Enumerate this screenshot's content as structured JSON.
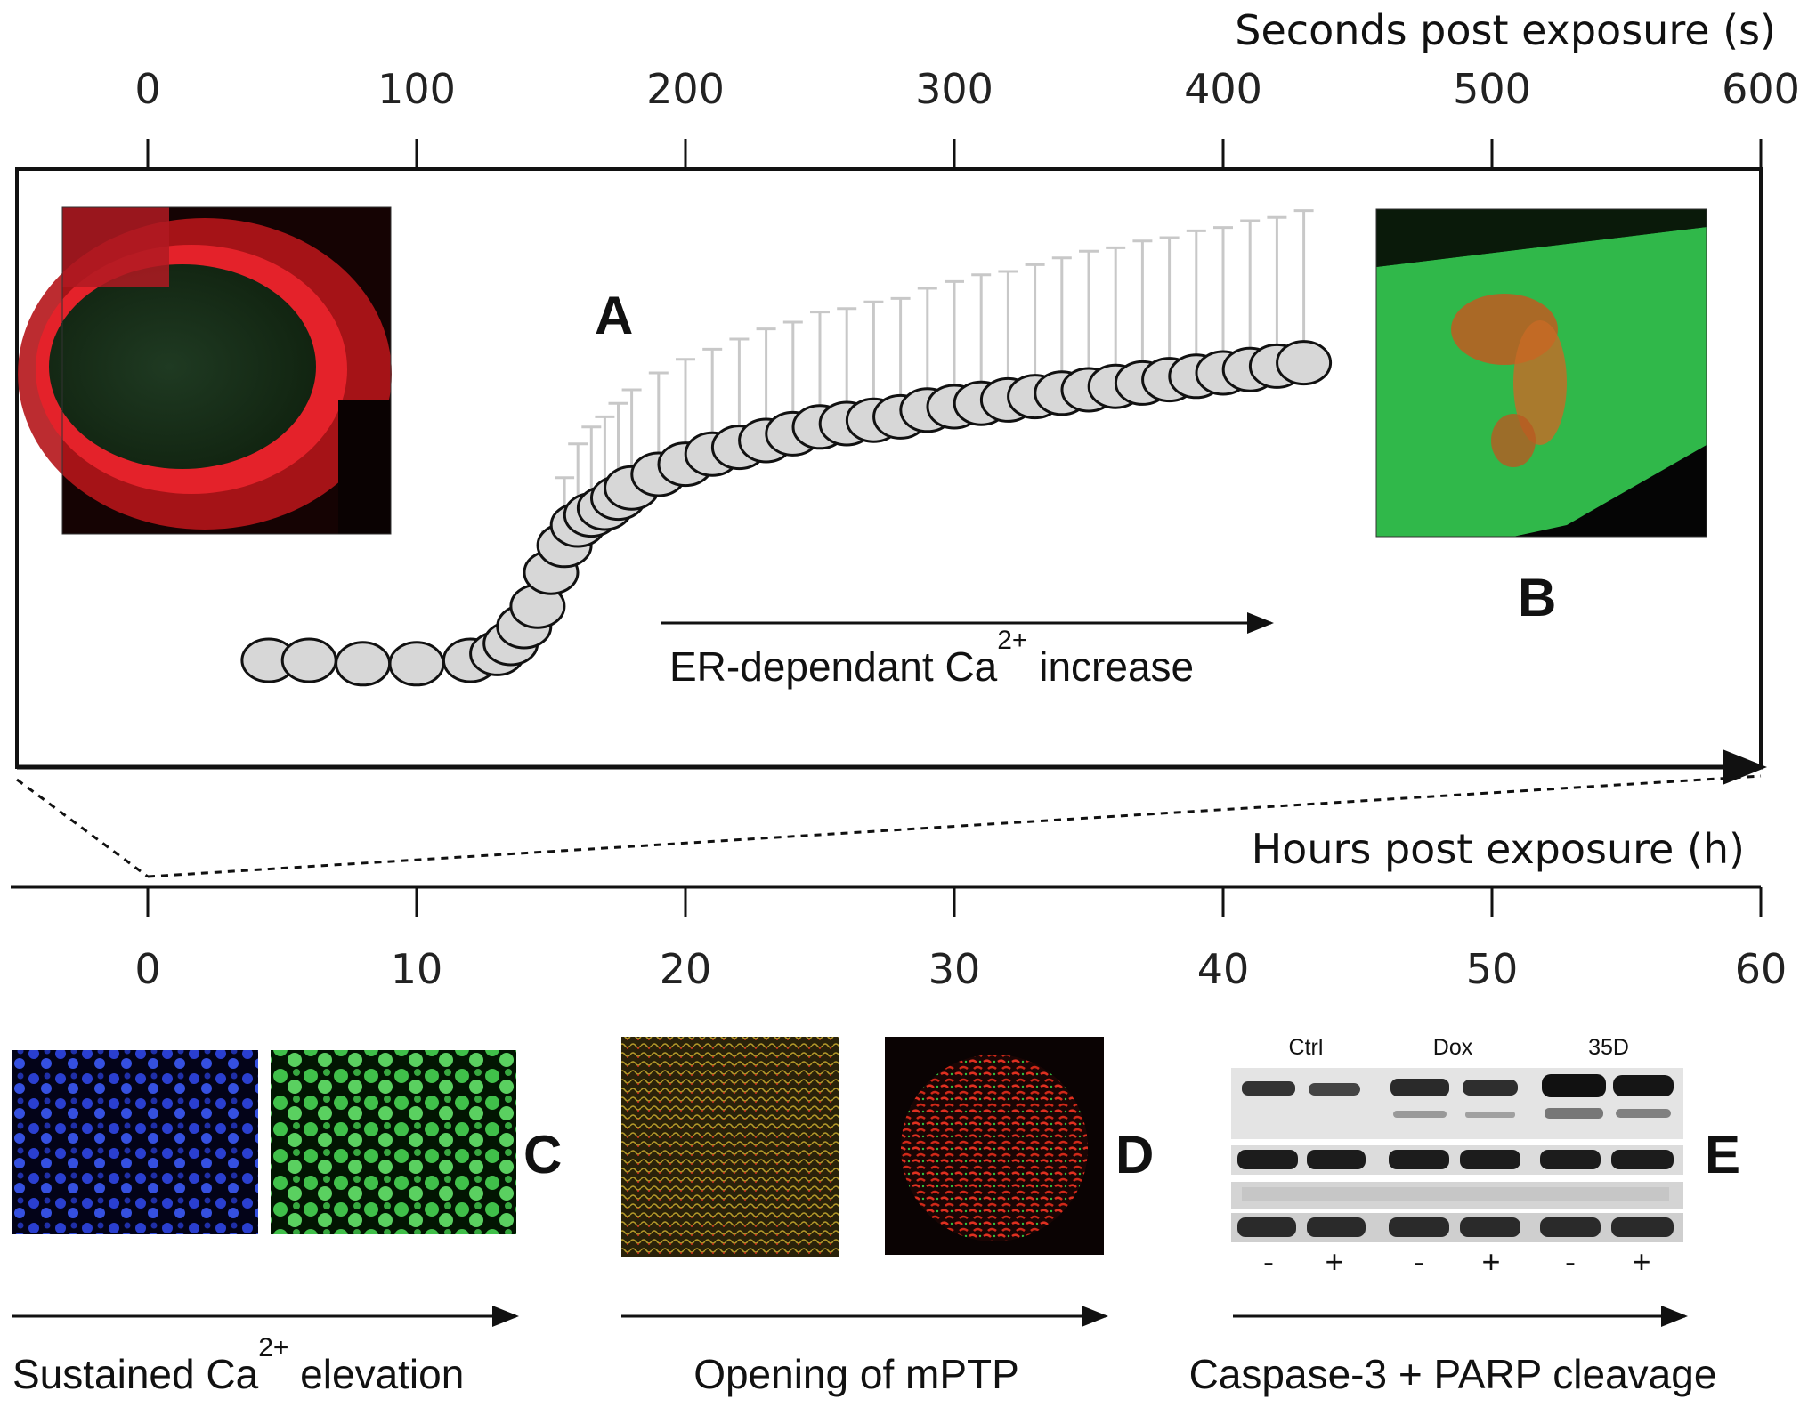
{
  "top_axis": {
    "title": "Seconds post exposure (s)",
    "ticks": [
      "0",
      "100",
      "200",
      "300",
      "400",
      "500",
      "600"
    ]
  },
  "bottom_axis": {
    "title": "Hours post exposure (h)",
    "ticks": [
      "0",
      "10",
      "20",
      "30",
      "40",
      "50",
      "60"
    ]
  },
  "panels": {
    "a": "A",
    "b": "B",
    "c": "C",
    "d": "D",
    "e": "E"
  },
  "annotations": {
    "er_text": "ER-dependant Ca",
    "er_sup": "2+",
    "er_tail": " increase",
    "c_text": "Sustained Ca",
    "c_sup": "2+",
    "c_tail": " elevation",
    "d_text": "Opening of mPTP",
    "e_text": "Caspase-3  + PARP cleavage"
  },
  "blot": {
    "headers": [
      "Ctrl",
      "Dox",
      "35D"
    ],
    "signs": [
      "-",
      "+",
      "-",
      "+",
      "-",
      "+"
    ]
  },
  "colors": {
    "marker_fill": "#d7d7d7",
    "marker_stroke": "#111111",
    "errorbar": "#c8c8c8",
    "er_red": "#e01818",
    "fret_green": "#32b84a",
    "hoechst_blue": "#2a3fd0"
  },
  "chart_data": {
    "type": "scatter",
    "x_unit": "s",
    "xlim": [
      0,
      600
    ],
    "x_range_data": [
      45,
      430
    ],
    "series": [
      {
        "x": [
          45,
          60,
          80,
          100,
          120,
          130,
          135,
          140,
          145,
          150,
          155,
          160,
          165,
          170,
          175,
          180,
          190,
          200,
          210,
          220,
          230,
          240,
          250,
          260,
          270,
          280,
          290,
          300,
          310,
          320,
          330,
          340,
          350,
          360,
          370,
          380,
          390,
          400,
          410,
          420,
          430
        ],
        "y": [
          0.0,
          0.0,
          -0.01,
          -0.01,
          0.0,
          0.02,
          0.05,
          0.1,
          0.16,
          0.26,
          0.34,
          0.4,
          0.43,
          0.45,
          0.48,
          0.51,
          0.55,
          0.58,
          0.61,
          0.63,
          0.65,
          0.67,
          0.69,
          0.7,
          0.71,
          0.72,
          0.74,
          0.75,
          0.76,
          0.77,
          0.78,
          0.79,
          0.8,
          0.81,
          0.82,
          0.83,
          0.84,
          0.85,
          0.86,
          0.87,
          0.88
        ],
        "err": [
          0.01,
          0.01,
          0.01,
          0.01,
          0.01,
          0.02,
          0.03,
          0.05,
          0.08,
          0.12,
          0.2,
          0.24,
          0.26,
          0.27,
          0.28,
          0.29,
          0.3,
          0.31,
          0.31,
          0.32,
          0.33,
          0.33,
          0.34,
          0.34,
          0.35,
          0.35,
          0.36,
          0.37,
          0.38,
          0.38,
          0.39,
          0.4,
          0.41,
          0.41,
          0.42,
          0.42,
          0.43,
          0.43,
          0.44,
          0.44,
          0.45
        ]
      }
    ]
  }
}
